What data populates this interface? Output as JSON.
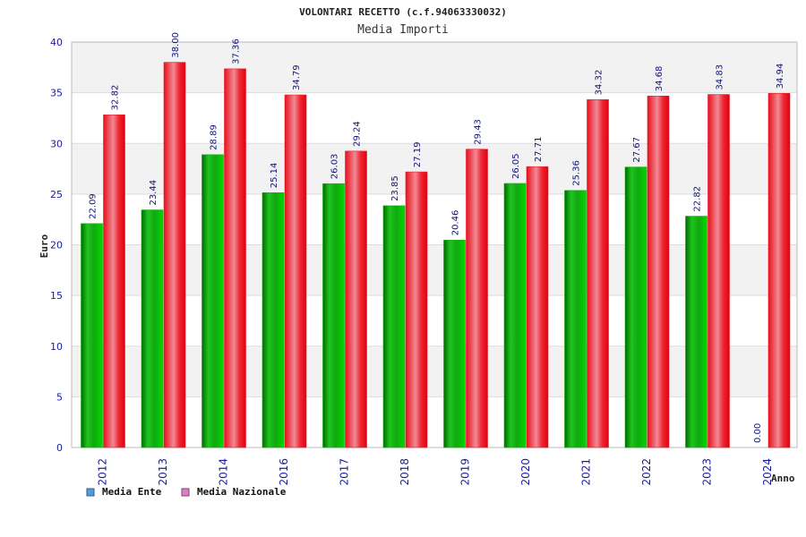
{
  "colors": {
    "band": "#f2f2f2",
    "grid": "#dddddd",
    "axis": "#bbbbbb",
    "series_ente": "#10b010",
    "series_nazionale": "#ee1c2a",
    "legend_ente": "#5b9bd5",
    "legend_nazionale": "#d783c0"
  },
  "chart_data": {
    "type": "bar",
    "title": "VOLONTARI RECETTO (c.f.94063330032)",
    "subtitle": "Media Importi",
    "xlabel": "Anno",
    "ylabel": "Euro",
    "ylim": [
      0,
      40
    ],
    "yticks": [
      0,
      5,
      10,
      15,
      20,
      25,
      30,
      35,
      40
    ],
    "grid": true,
    "legend_position": "bottom-left",
    "categories": [
      "2012",
      "2013",
      "2014",
      "2016",
      "2017",
      "2018",
      "2019",
      "2020",
      "2021",
      "2022",
      "2023",
      "2024"
    ],
    "series": [
      {
        "name": "Media Ente",
        "values": [
          22.09,
          23.44,
          28.89,
          25.14,
          26.03,
          23.85,
          20.46,
          26.05,
          25.36,
          27.67,
          22.82,
          0.0
        ],
        "labels": [
          "22.09",
          "23.44",
          "28.89",
          "25.14",
          "26.03",
          "23.85",
          "20.46",
          "26.05",
          "25.36",
          "27.67",
          "22.82",
          "0.00"
        ]
      },
      {
        "name": "Media Nazionale",
        "values": [
          32.82,
          38.0,
          37.36,
          34.79,
          29.24,
          27.19,
          29.43,
          27.71,
          34.32,
          34.68,
          34.83,
          34.94
        ],
        "labels": [
          "32.82",
          "38.00",
          "37.36",
          "34.79",
          "29.24",
          "27.19",
          "29.43",
          "27.71",
          "34.32",
          "34.68",
          "34.83",
          "34.94"
        ]
      }
    ]
  }
}
